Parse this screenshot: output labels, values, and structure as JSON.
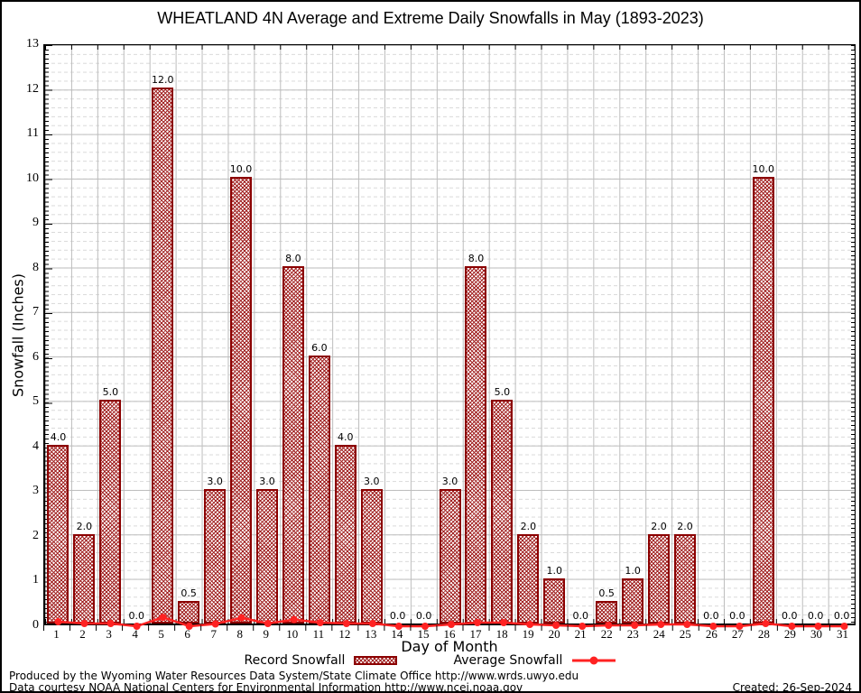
{
  "chart_data": {
    "type": "bar",
    "title": "WHEATLAND 4N Average and Extreme Daily Snowfalls in May (1893-2023)",
    "xlabel": "Day of Month",
    "ylabel": "Snowfall (Inches)",
    "ylim": [
      0,
      13
    ],
    "y_tick_step": 1,
    "grid": true,
    "legend_position": "bottom",
    "categories": [
      1,
      2,
      3,
      4,
      5,
      6,
      7,
      8,
      9,
      10,
      11,
      12,
      13,
      14,
      15,
      16,
      17,
      18,
      19,
      20,
      21,
      22,
      23,
      24,
      25,
      26,
      27,
      28,
      29,
      30,
      31
    ],
    "series": [
      {
        "name": "Record Snowfall",
        "type": "bar",
        "color": "#8b0000",
        "values": [
          4.0,
          2.0,
          5.0,
          0.0,
          12.0,
          0.5,
          3.0,
          10.0,
          3.0,
          8.0,
          6.0,
          4.0,
          3.0,
          0.0,
          0.0,
          3.0,
          8.0,
          5.0,
          2.0,
          1.0,
          0.0,
          0.5,
          1.0,
          2.0,
          2.0,
          0.0,
          0.0,
          10.0,
          0.0,
          0.0,
          0.0
        ],
        "labels": [
          "4.0",
          "2.0",
          "5.0",
          "0.0",
          "12.0",
          "0.5",
          "3.0",
          "10.0",
          "3.0",
          "8.0",
          "6.0",
          "4.0",
          "3.0",
          "0.0",
          "0.0",
          "3.0",
          "8.0",
          "5.0",
          "2.0",
          "1.0",
          "0.0",
          "0.5",
          "1.0",
          "2.0",
          "2.0",
          "0.0",
          "0.0",
          "10.0",
          "0.0",
          "0.0",
          "0.0"
        ]
      },
      {
        "name": "Average Snowfall",
        "type": "line",
        "color": "#ff2222",
        "values": [
          0.1,
          0.06,
          0.06,
          0.0,
          0.2,
          0.0,
          0.05,
          0.19,
          0.06,
          0.15,
          0.08,
          0.06,
          0.06,
          0.0,
          0.0,
          0.04,
          0.08,
          0.08,
          0.04,
          0.02,
          0.0,
          0.02,
          0.02,
          0.04,
          0.04,
          0.0,
          0.0,
          0.06,
          0.0,
          0.0,
          0.0
        ]
      }
    ]
  },
  "legend": {
    "record_label": "Record Snowfall",
    "average_label": "Average Snowfall"
  },
  "footer": {
    "line1": "Produced by the Wyoming Water Resources Data System/State Climate Office http://www.wrds.uwyo.edu",
    "line2": "Data courtesy NOAA National Centers for Environmental Information http://www.ncei.noaa.gov",
    "created": "Created: 26-Sep-2024"
  },
  "colors": {
    "bar_border": "#8b0000",
    "bar_hatch": "#a12121",
    "average_line": "#ff2222",
    "grid_major": "#bdbdbd",
    "grid_minor": "#d9d9d9",
    "axis": "#000000"
  }
}
